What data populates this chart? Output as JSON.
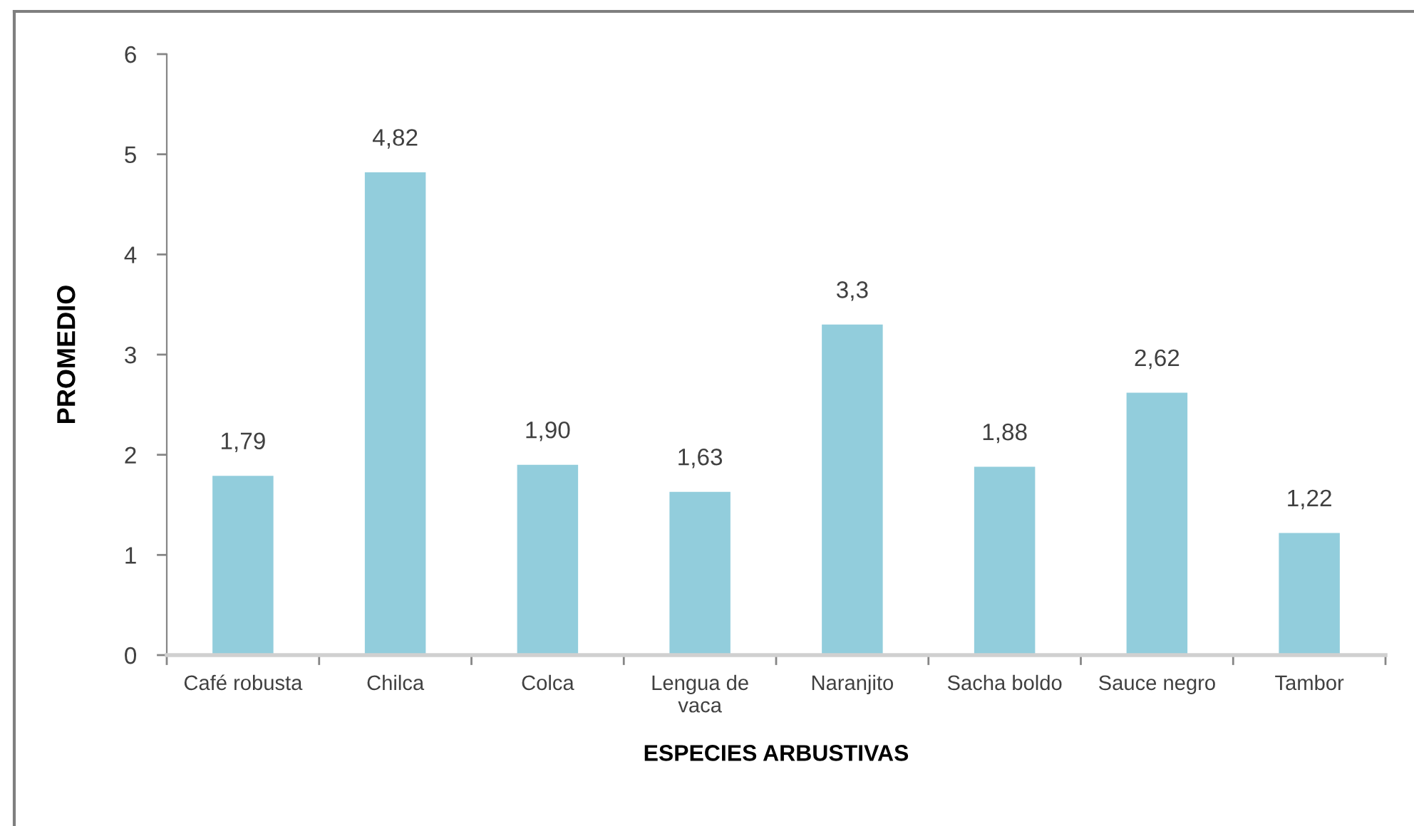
{
  "chart_data": {
    "type": "bar",
    "xlabel": "ESPECIES ARBUSTIVAS",
    "ylabel": "PROMEDIO",
    "categories": [
      "Café robusta",
      "Chilca",
      "Colca",
      "Lengua de vaca",
      "Naranjito",
      "Sacha boldo",
      "Sauce negro",
      "Tambor"
    ],
    "values": [
      1.79,
      4.82,
      1.9,
      1.63,
      3.3,
      1.88,
      2.62,
      1.22
    ],
    "color": "#92cddc",
    "value_labels": [
      "1,79",
      "4,82",
      "1,90",
      "1,63",
      "3,3",
      "1,88",
      "2,62",
      "1,22"
    ],
    "ylim": [
      0,
      6
    ],
    "yticks": [
      0,
      1,
      2,
      3,
      4,
      5,
      6
    ]
  }
}
